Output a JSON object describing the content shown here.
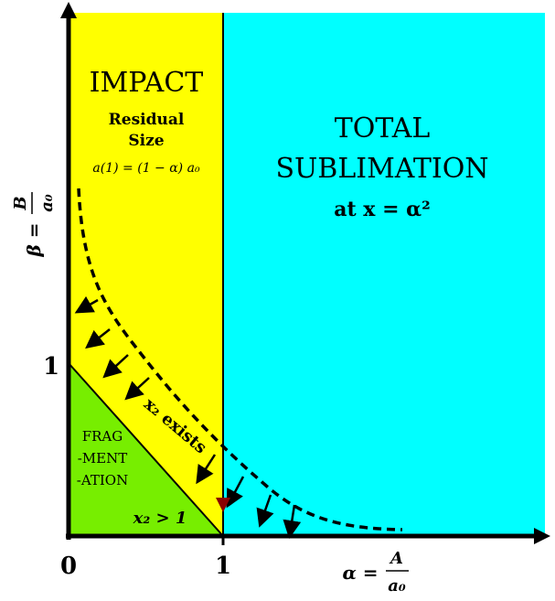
{
  "regions": {
    "impact": {
      "title": "IMPACT",
      "subtitle_line1": "Residual",
      "subtitle_line2": "Size",
      "formula": "a(1) = (1 − α) a₀",
      "color": "#ffff00"
    },
    "sublimation": {
      "title_line1": "TOTAL",
      "title_line2": "SUBLIMATION",
      "formula": "at x = α²",
      "color": "#00ffff"
    },
    "fragmentation": {
      "line1": "FRAG",
      "line2": "-MENT",
      "line3": "-ATION",
      "condition": "x₂ > 1",
      "color": "#77ee00"
    }
  },
  "curve_label": "x₂ exists",
  "axes": {
    "x_label_left": "α =",
    "x_label_num": "A",
    "x_label_den": "a₀",
    "y_label_left": "β =",
    "y_label_num": "B",
    "y_label_den": "a₀",
    "tick_origin": "0",
    "tick_x1": "1",
    "tick_y1": "1"
  }
}
